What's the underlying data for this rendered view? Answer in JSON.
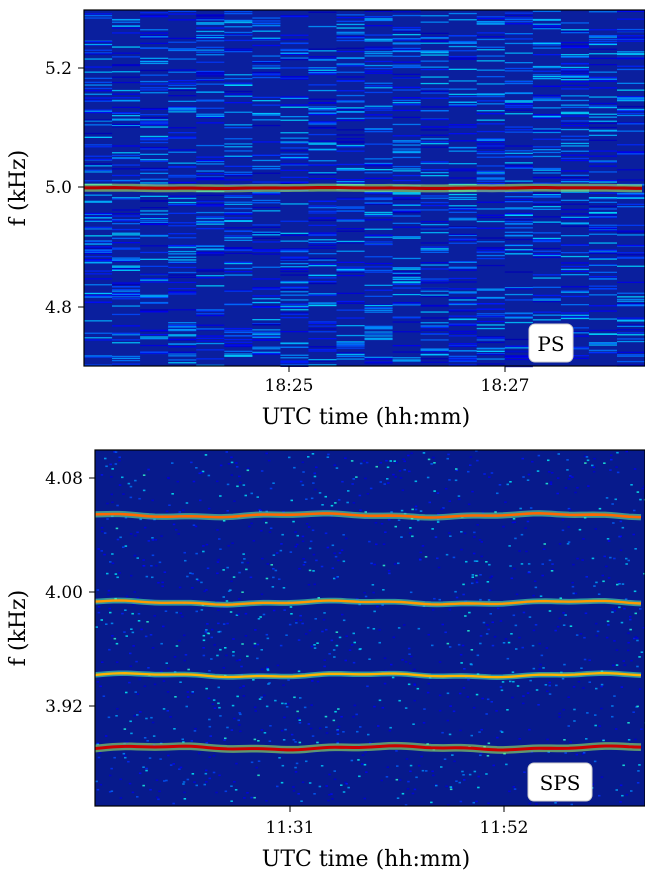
{
  "chart_data": [
    {
      "type": "heatmap",
      "panel_label": "PS",
      "xlabel": "UTC time (hh:mm)",
      "ylabel": "f (kHz)",
      "xticks": [
        "18:25",
        "18:27"
      ],
      "yticks": [
        "4.8",
        "5.0",
        "5.2"
      ],
      "ylim": [
        4.7,
        5.3
      ],
      "lines": [
        {
          "f": 5.0,
          "intensity": 1.0
        }
      ],
      "colormap": "jet",
      "background_color": "#0a1f9e"
    },
    {
      "type": "heatmap",
      "panel_label": "SPS",
      "xlabel": "UTC time (hh:mm)",
      "ylabel": "f (kHz)",
      "xticks": [
        "11:31",
        "11:52"
      ],
      "yticks": [
        "3.92",
        "4.00",
        "4.08"
      ],
      "ylim": [
        3.86,
        4.105
      ],
      "lines": [
        {
          "f": 4.06,
          "intensity": 0.65
        },
        {
          "f": 4.0,
          "intensity": 0.55
        },
        {
          "f": 3.95,
          "intensity": 0.5
        },
        {
          "f": 3.9,
          "intensity": 0.95
        }
      ],
      "colormap": "jet",
      "background_color": "#071a8c"
    }
  ]
}
